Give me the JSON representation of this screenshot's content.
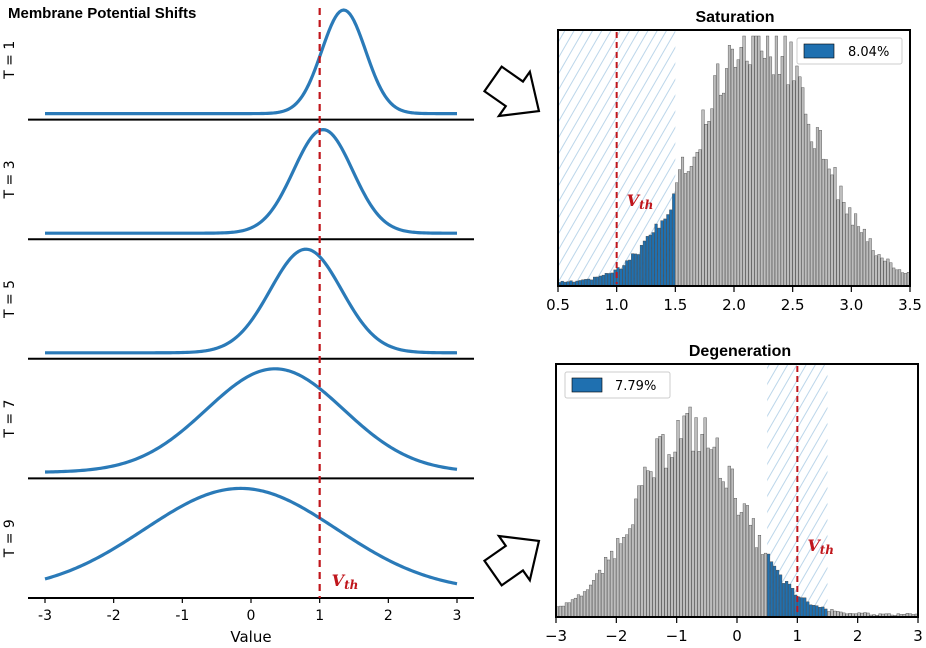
{
  "colors": {
    "curve": "#2a7ab8",
    "threshold": "#c0161c",
    "hist_gray": "#bdbdbd",
    "hist_blue": "#1f70b0",
    "hatch": "#bcd6ea"
  },
  "chart_data": [
    {
      "type": "line",
      "title": "Membrane Potential Shifts",
      "xlabel": "Value",
      "xlim": [
        -3,
        3
      ],
      "xticks": [
        "-3",
        "-2",
        "-1",
        "0",
        "1",
        "2",
        "3"
      ],
      "threshold": {
        "x": 1,
        "label_main": "V",
        "label_sub": "th"
      },
      "panels": [
        {
          "label": "T = 1",
          "mean": 1.35,
          "sd": 0.32
        },
        {
          "label": "T = 3",
          "mean": 1.05,
          "sd": 0.43
        },
        {
          "label": "T = 5",
          "mean": 0.8,
          "sd": 0.52
        },
        {
          "label": "T = 7",
          "mean": 0.35,
          "sd": 1.0
        },
        {
          "label": "T = 9",
          "mean": -0.15,
          "sd": 1.4
        }
      ]
    },
    {
      "type": "bar",
      "title": "Saturation",
      "xlim": [
        0.5,
        3.5
      ],
      "xticks": [
        "0.5",
        "1.0",
        "1.5",
        "2.0",
        "2.5",
        "3.0",
        "3.5"
      ],
      "threshold": {
        "x": 1.0,
        "label_main": "V",
        "label_sub": "th"
      },
      "highlight_range": [
        0.5,
        1.5
      ],
      "legend": {
        "label": "8.04%",
        "position": "top-right"
      },
      "distribution": {
        "mean": 2.2,
        "sd": 0.5,
        "peak": 1.0
      },
      "bin_width": 0.025
    },
    {
      "type": "bar",
      "title": "Degeneration",
      "xlim": [
        -3,
        3
      ],
      "xticks": [
        "−3",
        "−2",
        "−1",
        "0",
        "1",
        "2",
        "3"
      ],
      "threshold": {
        "x": 1,
        "label_main": "V",
        "label_sub": "th"
      },
      "highlight_range": [
        0.5,
        1.5
      ],
      "legend": {
        "label": "7.79%",
        "position": "top-left"
      },
      "distribution": {
        "mean": -0.8,
        "sd": 0.85,
        "peak": 0.75
      },
      "bin_width": 0.05
    }
  ]
}
